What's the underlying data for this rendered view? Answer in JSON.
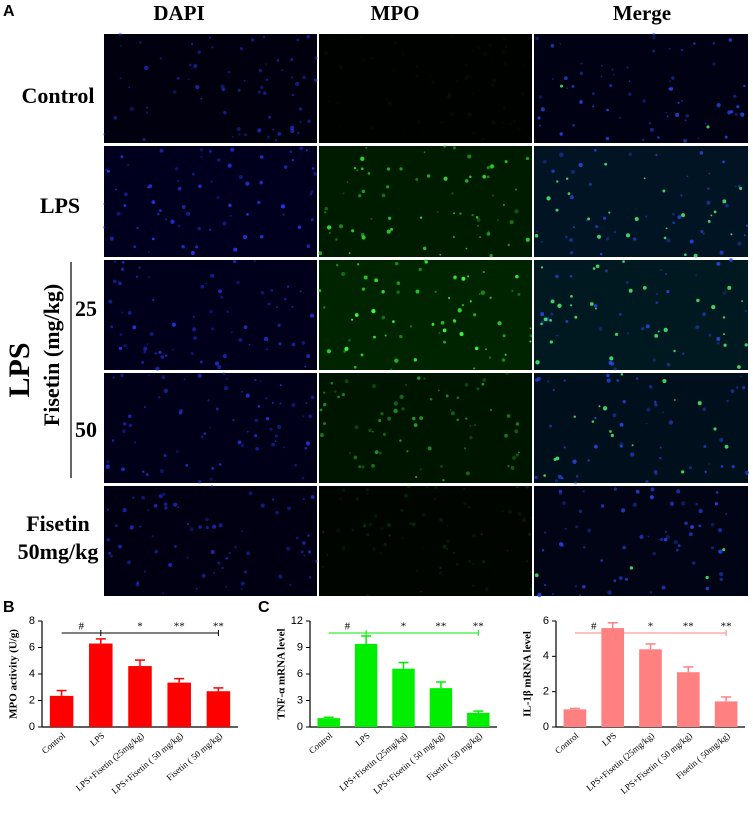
{
  "panel_labels": [
    "A",
    "B",
    "C"
  ],
  "panel_a": {
    "columns": [
      "DAPI",
      "MPO",
      "Merge"
    ],
    "rows": [
      "Control",
      "LPS"
    ],
    "group_label": "LPS",
    "group_sublabel": "Fisetin (mg/kg)",
    "doses": [
      "25",
      "50"
    ],
    "last_row": [
      "Fisetin",
      "50mg/kg"
    ]
  },
  "chart_data": [
    {
      "type": "bar",
      "y_label": "MPO activity (U/g)",
      "categories": [
        "Control",
        "LPS",
        "LPS+Fisetin (25mg/kg)",
        "LPS+Fisetin ( 50 mg/kg)",
        "Fisetin ( 50 mg/kg)"
      ],
      "values": [
        2.35,
        6.3,
        4.6,
        3.35,
        2.7
      ],
      "errors": [
        0.4,
        0.35,
        0.45,
        0.3,
        0.25
      ],
      "color": "#ff0000",
      "ylim": [
        0,
        8
      ],
      "yticks": [
        0,
        2,
        4,
        6,
        8
      ],
      "annotations": [
        "#",
        "*",
        "**",
        "**"
      ]
    },
    {
      "type": "bar",
      "y_label": "TNF-α  mRNA level",
      "categories": [
        "Control",
        "LPS",
        "LPS+Fisetin (25mg/kg)",
        "LPS+Fisetin ( 50 mg/kg)",
        "Fisetin ( 50 mg/kg)"
      ],
      "values": [
        1.0,
        9.4,
        6.6,
        4.4,
        1.6
      ],
      "errors": [
        0.1,
        0.9,
        0.7,
        0.7,
        0.2
      ],
      "color": "#00ee00",
      "ylim": [
        0,
        12
      ],
      "yticks": [
        0,
        3,
        6,
        9,
        12
      ],
      "annotations": [
        "#",
        "*",
        "**",
        "**"
      ]
    },
    {
      "type": "bar",
      "y_label": "IL-1β  mRNA level",
      "categories": [
        "Control",
        "LPS",
        "LPS+Fisetin (25mg/kg)",
        "LPS+Fisetin ( 50 mg/kg)",
        "Fisetin (  50mg/kg)"
      ],
      "values": [
        1.0,
        5.6,
        4.4,
        3.1,
        1.45
      ],
      "errors": [
        0.05,
        0.3,
        0.3,
        0.3,
        0.25
      ],
      "color": "#ff8080",
      "ylim": [
        0,
        6
      ],
      "yticks": [
        0,
        2,
        4,
        6
      ],
      "annotations": [
        "#",
        "*",
        "**",
        "**"
      ]
    }
  ]
}
